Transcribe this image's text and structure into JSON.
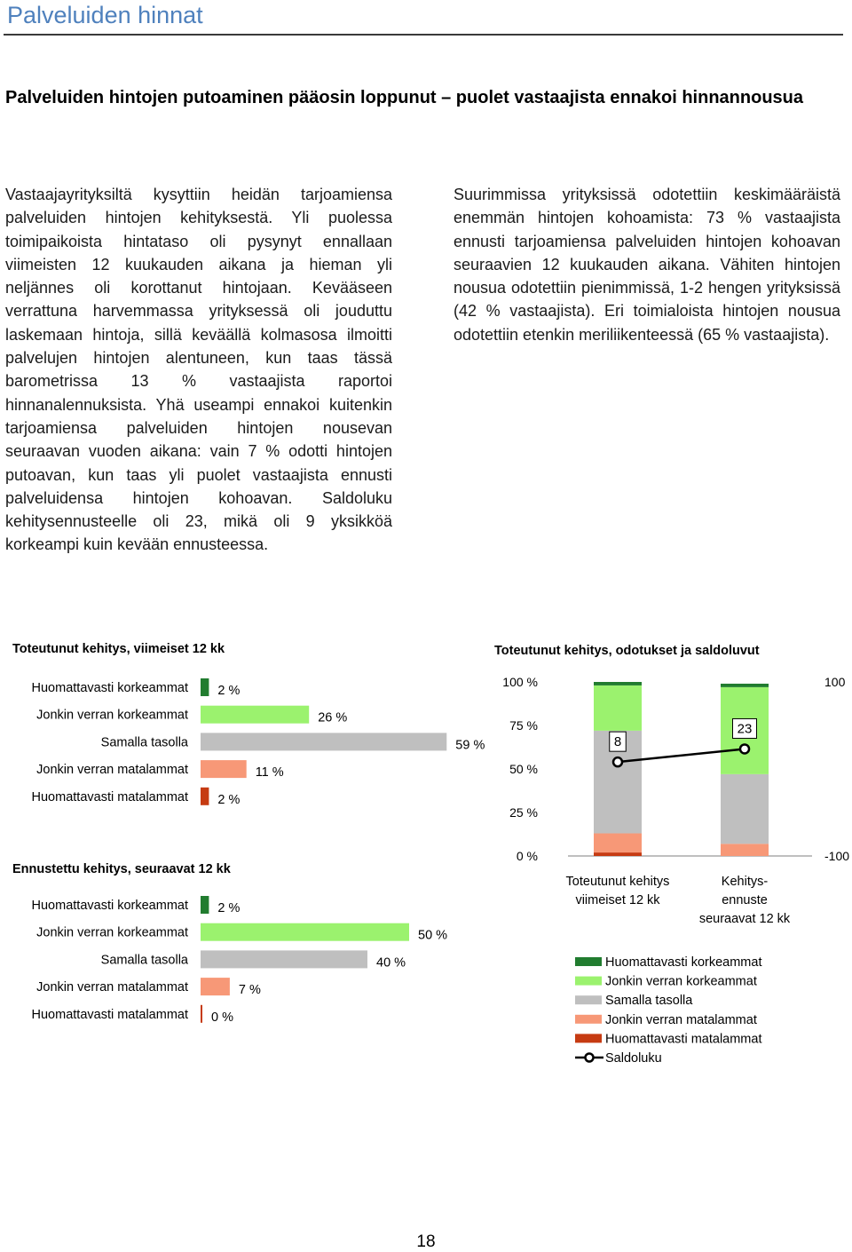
{
  "page_title": "Palveluiden hinnat",
  "headline": "Palveluiden hintojen putoaminen pääosin loppunut – puolet vastaajista ennakoi hinnannousua",
  "left_text": "Vastaajayrityksiltä kysyttiin heidän tarjoamiensa palveluiden hintojen kehityksestä. Yli puolessa toimipaikoista hintataso oli pysynyt ennallaan viimeisten 12 kuukauden aikana ja hieman yli neljännes oli korottanut hintojaan. Kevääseen verrattuna harvemmassa yrityksessä oli jouduttu laskemaan hintoja, sillä keväällä kolmasosa ilmoitti palvelujen hintojen alentuneen, kun taas tässä barometrissa 13 % vastaajista raportoi hinnanalennuksista. Yhä useampi ennakoi kuitenkin tarjoamiensa palveluiden hintojen nousevan seuraavan vuoden aikana: vain 7 % odotti hintojen putoavan, kun taas yli puolet vastaajista ennusti palveluidensa hintojen kohoavan. Saldoluku kehitysennusteelle oli 23, mikä oli 9 yksikköä korkeampi kuin kevään ennusteessa.",
  "right_text": "Suurimmissa yrityksissä odotettiin keskimääräistä enemmän hintojen kohoamista: 73 % vastaajista ennusti tarjoamiensa palveluiden hintojen kohoavan seuraavien 12 kuukauden aikana. Vähiten hintojen nousua odotettiin pienimmissä, 1-2 hengen yrityksissä (42 % vastaajista). Eri toimialoista hintojen nousua odotettiin etenkin meriliikenteessä (65 % vastaajista).",
  "page_number": "18",
  "colors": {
    "huomattavasti_korkeammat": "#217c2f",
    "jonkin_verran_korkeammat": "#9bf26e",
    "samalla_tasolla": "#bfbfbf",
    "jonkin_verran_matalammat": "#f79877",
    "huomattavasti_matalammat": "#c63b12",
    "saldoluku": "#000000",
    "title": "#4f81bd"
  },
  "chart_data": [
    {
      "type": "bar",
      "orientation": "horizontal",
      "title": "Toteutunut kehitys, viimeiset 12 kk",
      "categories": [
        "Huomattavasti korkeammat",
        "Jonkin verran korkeammat",
        "Samalla tasolla",
        "Jonkin verran matalammat",
        "Huomattavasti matalammat"
      ],
      "values": [
        2,
        26,
        59,
        11,
        2
      ],
      "value_labels": [
        "2 %",
        "26 %",
        "59 %",
        "11 %",
        "2 %"
      ],
      "unit": "%"
    },
    {
      "type": "bar",
      "orientation": "horizontal",
      "title": "Ennustettu kehitys, seuraavat 12 kk",
      "categories": [
        "Huomattavasti korkeammat",
        "Jonkin verran korkeammat",
        "Samalla tasolla",
        "Jonkin verran matalammat",
        "Huomattavasti matalammat"
      ],
      "values": [
        2,
        50,
        40,
        7,
        0
      ],
      "value_labels": [
        "2 %",
        "50 %",
        "40 %",
        "7 %",
        "0 %"
      ],
      "unit": "%"
    },
    {
      "type": "stacked_bar_with_line",
      "title": "Toteutunut kehitys, odotukset ja saldoluvut",
      "categories": [
        "Toteutunut kehitys viimeiset 12 kk",
        "Kehitysennuste seuraavat 12 kk"
      ],
      "category_label_lines": [
        [
          "Toteutunut kehitys",
          "viimeiset 12 kk"
        ],
        [
          "Kehitys-",
          "ennuste",
          "seuraavat 12 kk"
        ]
      ],
      "series": [
        {
          "name": "Huomattavasti matalammat",
          "values": [
            2,
            0
          ]
        },
        {
          "name": "Jonkin verran matalammat",
          "values": [
            11,
            7
          ]
        },
        {
          "name": "Samalla tasolla",
          "values": [
            59,
            40
          ]
        },
        {
          "name": "Jonkin verran korkeammat",
          "values": [
            26,
            50
          ]
        },
        {
          "name": "Huomattavasti korkeammat",
          "values": [
            2,
            2
          ]
        }
      ],
      "legend_order": [
        "Huomattavasti korkeammat",
        "Jonkin verran korkeammat",
        "Samalla tasolla",
        "Jonkin verran matalammat",
        "Huomattavasti matalammat",
        "Saldoluku"
      ],
      "line_series": {
        "name": "Saldoluku",
        "values": [
          8,
          23
        ],
        "labels": [
          "8",
          "23"
        ]
      },
      "ylim_left": [
        0,
        100
      ],
      "yticks_left": [
        "0 %",
        "25 %",
        "50 %",
        "75 %",
        "100 %"
      ],
      "ylim_right": [
        -100,
        100
      ],
      "yticks_right": [
        "-100",
        "100"
      ],
      "legend_position": "bottom"
    }
  ]
}
